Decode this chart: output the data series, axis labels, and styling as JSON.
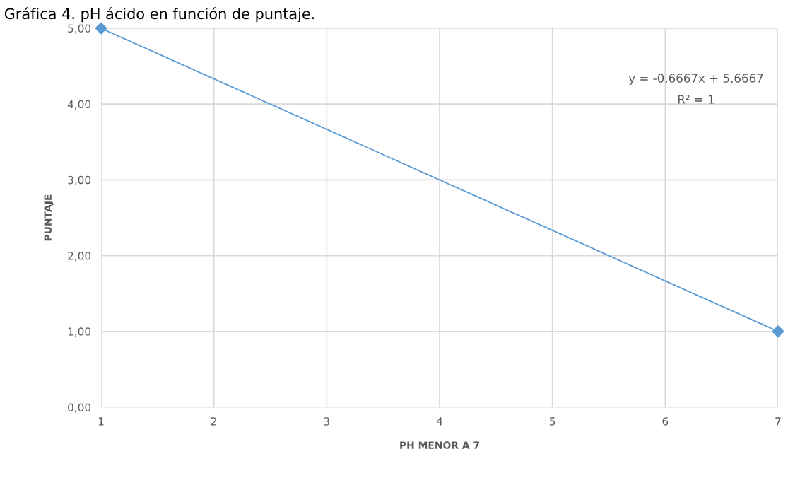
{
  "chart_data": {
    "type": "line",
    "title": "Gráfica 4. pH ácido en función de puntaje.",
    "xlabel": "PH MENOR A 7",
    "ylabel": "PUNTAJE",
    "x": [
      1,
      7
    ],
    "series": [
      {
        "color": "#5b9bd5",
        "values": [
          5,
          1
        ]
      }
    ],
    "xlim": [
      1,
      7
    ],
    "xticks": [
      1,
      2,
      3,
      4,
      5,
      6,
      7
    ],
    "ylim": [
      0,
      5
    ],
    "yticks": [
      {
        "value": 0,
        "label": "0,00"
      },
      {
        "value": 1,
        "label": "1,00"
      },
      {
        "value": 2,
        "label": "2,00"
      },
      {
        "value": 3,
        "label": "3,00"
      },
      {
        "value": 4,
        "label": "4,00"
      },
      {
        "value": 5,
        "label": "5,00"
      }
    ],
    "annotations": [
      "y = -0,6667x + 5,6667",
      "R² = 1"
    ],
    "grid": true,
    "marker": "diamond",
    "line_style": "solid"
  }
}
